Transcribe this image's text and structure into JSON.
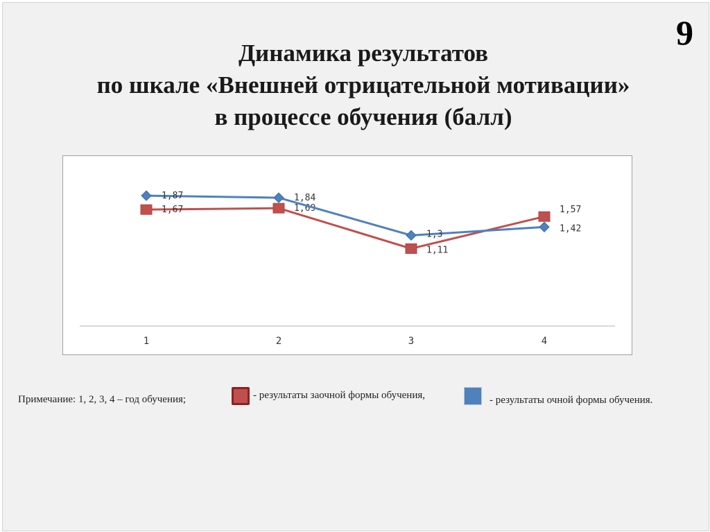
{
  "page_number": "9",
  "title_lines": [
    "Динамика результатов",
    "по шкале «Внешней отрицательной мотивации»",
    "в процессе обучения (балл)"
  ],
  "legend": {
    "note": "Примечание: 1, 2, 3, 4 – год обучения;",
    "red_label": "- результаты заочной формы обучения,",
    "blue_label": "- результаты очной формы обучения."
  },
  "chart_data": {
    "type": "line",
    "categories": [
      "1",
      "2",
      "3",
      "4"
    ],
    "series": [
      {
        "key": "extramural",
        "color": "#c0504d",
        "marker": "square",
        "values": [
          1.67,
          1.69,
          1.11,
          1.57
        ],
        "labels": [
          "1,67",
          "1,69",
          "1,11",
          "1,57"
        ]
      },
      {
        "key": "fulltime",
        "color": "#4f81bd",
        "marker": "diamond",
        "values": [
          1.87,
          1.84,
          1.3,
          1.42
        ],
        "labels": [
          "1,87",
          "1,84",
          "1,3",
          "1,42"
        ]
      }
    ],
    "ylim": [
      0,
      2
    ],
    "grid": false
  }
}
